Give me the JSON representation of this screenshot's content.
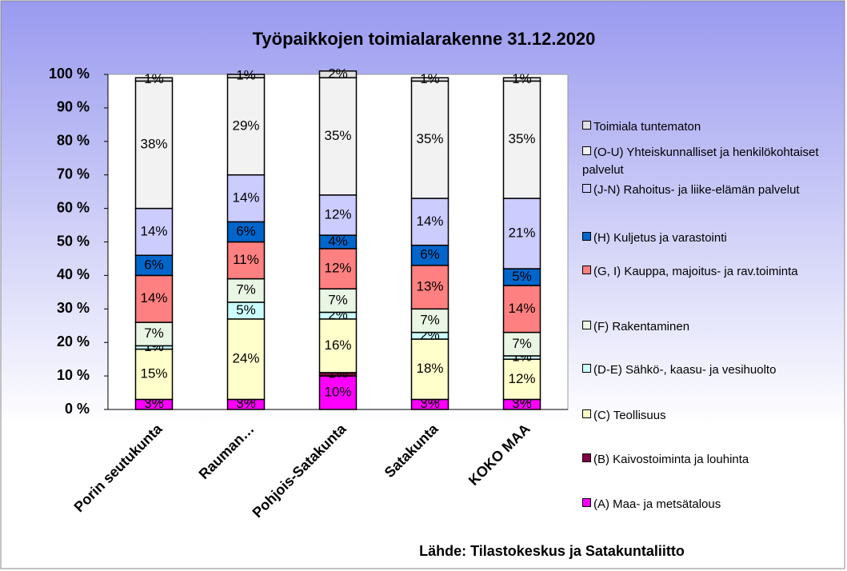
{
  "chart_data": {
    "type": "stacked_bar_100",
    "title": "Työpaikkojen toimialarakenne 31.12.2020",
    "source": "Lähde: Tilastokeskus ja Satakuntaliitto",
    "categories": [
      "Porin seutukunta",
      "Rauman…",
      "Pohjois-Satakunta",
      "Satakunta",
      "KOKO MAA"
    ],
    "ylim": [
      0,
      100
    ],
    "yticks": [
      {
        "value": 0,
        "label": "0 %"
      },
      {
        "value": 10,
        "label": "10 %"
      },
      {
        "value": 20,
        "label": "20 %"
      },
      {
        "value": 30,
        "label": "30 %"
      },
      {
        "value": 40,
        "label": "40 %"
      },
      {
        "value": 50,
        "label": "50 %"
      },
      {
        "value": 60,
        "label": "60 %"
      },
      {
        "value": 70,
        "label": "70 %"
      },
      {
        "value": 80,
        "label": "80 %"
      },
      {
        "value": 90,
        "label": "90 %"
      },
      {
        "value": 100,
        "label": "100 %"
      }
    ],
    "series": [
      {
        "name": "(A) Maa- ja metsätalous",
        "color": "#ff00ff",
        "values": [
          3,
          3,
          10,
          3,
          3
        ],
        "value_labels": [
          "3%",
          "3%",
          "10%",
          "3%",
          "3%"
        ]
      },
      {
        "name": "(B) Kaivostoiminta ja louhinta",
        "color": "#800040",
        "values": [
          0,
          0,
          1,
          0,
          0
        ],
        "value_labels": [
          "0%",
          "0%",
          "1%",
          "0%",
          "0%"
        ]
      },
      {
        "name": "(C) Teollisuus",
        "color": "#ffffcc",
        "values": [
          15,
          24,
          16,
          18,
          12
        ],
        "value_labels": [
          "15%",
          "24%",
          "16%",
          "18%",
          "12%"
        ]
      },
      {
        "name": "(D-E) Sähkö-, kaasu- ja vesihuolto",
        "color": "#ccffff",
        "values": [
          1,
          5,
          2,
          2,
          1
        ],
        "value_labels": [
          "1%",
          "5%",
          "2%",
          "2%",
          "1%"
        ]
      },
      {
        "name": "(F) Rakentaminen",
        "color": "#eaf6e4",
        "values": [
          7,
          7,
          7,
          7,
          7
        ],
        "value_labels": [
          "7%",
          "7%",
          "7%",
          "7%",
          "7%"
        ]
      },
      {
        "name": "(G, I) Kauppa, majoitus- ja rav.toiminta",
        "color": "#ff8080",
        "values": [
          14,
          11,
          12,
          13,
          14
        ],
        "value_labels": [
          "14%",
          "11%",
          "12%",
          "13%",
          "14%"
        ]
      },
      {
        "name": "(H) Kuljetus ja varastointi",
        "color": "#0066cc",
        "values": [
          6,
          6,
          4,
          6,
          5
        ],
        "value_labels": [
          "6%",
          "6%",
          "4%",
          "6%",
          "5%"
        ]
      },
      {
        "name": "(J-N) Rahoitus- ja liike-elämän palvelut",
        "color": "#ccccff",
        "values": [
          14,
          14,
          12,
          14,
          21
        ],
        "value_labels": [
          "14%",
          "14%",
          "12%",
          "14%",
          "21%"
        ]
      },
      {
        "name": "(O-U) Yhteiskunnalliset ja henkilökohtaiset palvelut",
        "color": "#f2f2f2",
        "values": [
          38,
          29,
          35,
          35,
          35
        ],
        "value_labels": [
          "38%",
          "29%",
          "35%",
          "35%",
          "35%"
        ]
      },
      {
        "name": "Toimiala tuntematon",
        "color": "#e0e0e0",
        "values": [
          1,
          1,
          2,
          1,
          1
        ],
        "value_labels": [
          "1%",
          "1%",
          "2%",
          "1%",
          "1%"
        ]
      }
    ]
  }
}
